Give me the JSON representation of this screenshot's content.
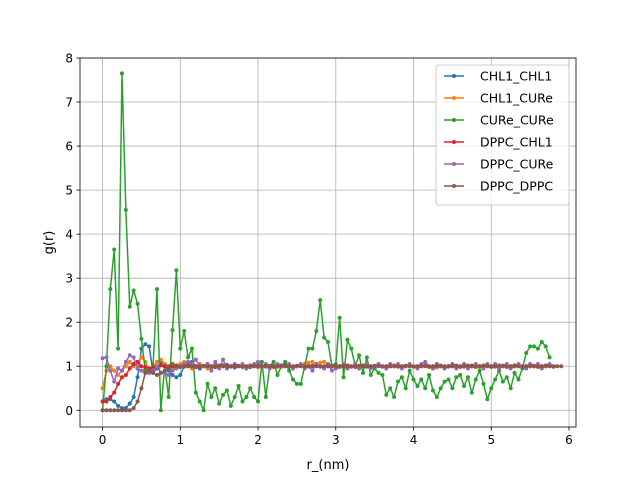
{
  "chart_data": {
    "type": "line",
    "title": "",
    "xlabel": "r_(nm)",
    "ylabel": "g(r)",
    "xlim": [
      -0.29,
      6.09
    ],
    "ylim": [
      -0.38,
      8.0
    ],
    "xticks": [
      0,
      1,
      2,
      3,
      4,
      5,
      6
    ],
    "yticks": [
      0,
      1,
      2,
      3,
      4,
      5,
      6,
      7,
      8
    ],
    "grid": true,
    "legend_position": "top-right",
    "colors": {
      "CHL1_CHL1": "#1f77b4",
      "CHL1_CURe": "#ff7f0e",
      "CURe_CURe": "#2ca02c",
      "DPPC_CHL1": "#d62728",
      "DPPC_CURe": "#9467bd",
      "DPPC_DPPC": "#8c564b"
    },
    "series": [
      {
        "name": "CHL1_CHL1",
        "x_step": 0.05,
        "values": [
          0.2,
          0.25,
          0.25,
          0.2,
          0.1,
          0.05,
          0.05,
          0.15,
          0.3,
          0.75,
          1.4,
          1.5,
          1.45,
          0.85,
          0.95,
          1.1,
          1.05,
          0.9,
          0.8,
          0.75,
          0.8,
          1.0,
          1.05,
          1.1,
          1.0,
          0.95,
          1.0,
          1.05,
          1.0,
          0.98,
          1.0,
          1.02,
          1.03,
          1.0,
          0.97,
          1.0,
          1.02,
          1.0,
          0.98,
          1.0,
          1.02,
          1.0,
          0.99,
          1.0,
          1.01,
          1.0,
          0.99,
          1.0,
          1.01,
          1.0,
          1.0,
          1.01,
          0.99,
          1.0,
          1.0,
          1.01,
          0.99,
          1.0,
          1.0,
          1.01,
          0.99,
          1.0,
          1.0,
          1.01,
          0.99,
          1.0,
          1.0,
          1.01,
          0.99,
          1.0,
          1.0,
          1.01,
          0.99,
          1.0,
          1.0,
          1.01,
          0.99,
          1.0,
          1.0,
          1.01,
          0.99,
          1.0,
          1.0,
          1.01,
          0.99,
          1.0,
          1.0,
          1.01,
          0.99,
          1.0,
          1.0,
          1.01,
          0.99,
          1.0,
          1.0,
          1.01,
          0.99,
          1.0,
          1.0,
          1.01,
          0.99,
          1.0,
          1.0,
          1.01,
          0.99,
          1.0,
          1.0,
          1.01,
          0.99,
          1.0,
          1.0,
          1.01,
          0.99,
          1.0,
          1.0,
          1.01,
          0.99
        ]
      },
      {
        "name": "CHL1_CURe",
        "x_step": 0.05,
        "values": [
          0.5,
          0.9,
          1.0,
          0.9,
          0.8,
          0.9,
          1.0,
          1.1,
          1.0,
          1.05,
          1.2,
          1.1,
          0.9,
          1.0,
          1.1,
          1.15,
          1.05,
          1.0,
          0.95,
          1.0,
          1.05,
          1.1,
          1.0,
          0.95,
          1.0,
          1.05,
          1.0,
          0.95,
          1.0,
          1.05,
          1.02,
          1.0,
          0.98,
          1.0,
          1.02,
          1.0,
          0.98,
          1.0,
          1.02,
          1.0,
          0.98,
          1.0,
          1.02,
          1.0,
          0.98,
          1.0,
          1.02,
          1.05,
          1.0,
          0.98,
          1.0,
          1.02,
          1.05,
          1.08,
          1.1,
          1.05,
          1.08,
          1.1,
          1.05,
          1.0,
          1.0,
          0.98,
          1.0,
          1.02,
          1.0,
          0.98,
          1.0,
          1.02,
          1.0,
          0.98,
          1.0,
          1.02,
          1.0,
          0.98,
          1.0,
          1.02,
          1.0,
          0.98,
          1.0,
          1.02,
          1.0,
          0.98,
          1.0,
          1.02,
          0.98,
          0.95,
          0.97,
          1.0,
          0.98,
          1.0,
          1.02,
          1.0,
          0.98,
          1.0,
          1.02,
          1.0,
          0.98,
          1.0,
          1.02,
          1.0,
          0.98,
          1.0,
          1.02,
          1.0,
          0.98,
          1.0,
          1.02,
          1.0,
          0.98,
          1.0,
          1.02,
          1.0,
          0.98,
          1.0,
          1.02,
          1.0,
          1.0
        ]
      },
      {
        "name": "CURe_CURe",
        "x_step": 0.05,
        "values": [
          0.0,
          1.0,
          2.75,
          3.65,
          1.4,
          7.65,
          4.55,
          2.35,
          2.72,
          2.42,
          1.62,
          0.92,
          0.85,
          1.0,
          2.75,
          0.0,
          1.0,
          0.3,
          1.82,
          3.18,
          1.4,
          1.8,
          1.2,
          1.4,
          0.4,
          0.2,
          0.0,
          0.6,
          0.3,
          0.5,
          0.15,
          0.35,
          0.45,
          0.1,
          0.3,
          0.55,
          0.2,
          0.3,
          0.5,
          0.3,
          0.2,
          1.1,
          0.3,
          1.0,
          1.1,
          0.8,
          1.0,
          1.1,
          0.9,
          0.7,
          0.6,
          0.6,
          1.0,
          1.4,
          1.4,
          1.8,
          2.5,
          1.65,
          1.55,
          1.0,
          1.05,
          2.1,
          0.75,
          1.6,
          1.4,
          1.0,
          1.25,
          0.85,
          1.2,
          0.8,
          0.95,
          0.85,
          0.8,
          0.35,
          0.5,
          0.3,
          0.65,
          0.75,
          0.5,
          0.9,
          0.7,
          0.55,
          0.7,
          0.5,
          0.8,
          0.45,
          0.3,
          0.5,
          0.65,
          0.7,
          0.5,
          0.75,
          0.8,
          0.55,
          0.75,
          0.4,
          0.7,
          0.9,
          0.6,
          0.25,
          0.5,
          0.7,
          0.9,
          0.65,
          0.75,
          0.5,
          0.85,
          0.7,
          0.95,
          1.3,
          1.45,
          1.45,
          1.4,
          1.55,
          1.45,
          1.2
        ]
      },
      {
        "name": "DPPC_CHL1",
        "x_step": 0.05,
        "values": [
          0.2,
          0.2,
          0.3,
          0.4,
          0.6,
          0.75,
          0.8,
          0.95,
          1.05,
          1.1,
          1.0,
          0.98,
          0.95,
          0.97,
          1.0,
          1.02,
          1.0,
          0.98,
          1.0,
          1.02,
          1.0,
          0.99,
          1.0,
          1.01,
          1.0,
          0.99,
          1.0,
          1.01,
          1.0,
          0.99,
          1.0,
          1.01,
          1.0,
          0.99,
          1.0,
          1.01,
          1.0,
          0.99,
          1.0,
          1.01,
          1.0,
          0.99,
          1.0,
          1.01,
          1.0,
          0.99,
          1.0,
          1.01,
          1.0,
          0.99,
          1.0,
          1.01,
          1.0,
          0.99,
          1.0,
          1.01,
          1.0,
          0.99,
          1.0,
          1.01,
          1.0,
          0.99,
          1.0,
          1.01,
          1.0,
          0.99,
          1.0,
          1.01,
          1.0,
          0.99,
          1.0,
          1.01,
          1.0,
          0.99,
          1.0,
          1.01,
          1.0,
          0.99,
          1.0,
          1.01,
          1.0,
          0.99,
          1.0,
          1.01,
          1.0,
          0.99,
          1.0,
          1.01,
          1.0,
          0.99,
          1.0,
          1.01,
          1.0,
          0.99,
          1.0,
          1.01,
          1.0,
          0.99,
          1.0,
          1.01,
          1.0,
          0.99,
          1.0,
          1.01,
          1.0,
          0.99,
          1.0,
          1.01,
          1.0,
          0.99,
          1.0,
          1.01,
          1.0,
          0.99,
          1.0,
          1.01,
          1.0
        ]
      },
      {
        "name": "DPPC_CURe",
        "x_step": 0.05,
        "values": [
          1.18,
          1.2,
          0.9,
          0.65,
          0.95,
          0.9,
          1.1,
          1.25,
          1.2,
          0.95,
          0.9,
          0.85,
          0.85,
          0.9,
          1.0,
          0.85,
          0.85,
          0.8,
          0.9,
          0.95,
          1.0,
          1.05,
          1.1,
          1.05,
          1.15,
          1.0,
          1.0,
          1.05,
          0.9,
          1.1,
          0.95,
          1.15,
          0.95,
          1.0,
          1.05,
          1.0,
          1.05,
          0.95,
          1.0,
          1.05,
          1.1,
          1.0,
          1.05,
          0.95,
          1.0,
          1.05,
          1.0,
          1.0,
          1.05,
          0.95,
          1.0,
          1.05,
          0.95,
          1.0,
          0.9,
          1.05,
          1.0,
          0.95,
          1.05,
          0.9,
          0.95,
          1.0,
          1.05,
          0.95,
          1.0,
          1.05,
          0.95,
          1.0,
          1.05,
          0.95,
          1.0,
          1.05,
          1.0,
          0.95,
          1.05,
          1.0,
          1.05,
          0.95,
          1.0,
          1.05,
          1.0,
          0.95,
          1.05,
          1.1,
          1.0,
          0.95,
          1.05,
          1.0,
          0.95,
          1.0,
          1.05,
          0.95,
          1.0,
          1.05,
          0.95,
          1.0,
          1.05,
          1.0,
          0.95,
          1.05,
          1.0,
          1.05,
          0.95,
          1.0,
          1.05,
          0.95,
          1.0,
          1.05,
          1.0,
          0.95,
          1.05,
          1.0,
          1.05,
          0.95,
          1.0,
          1.05,
          1.0
        ]
      },
      {
        "name": "DPPC_DPPC",
        "x_step": 0.05,
        "values": [
          0.0,
          0.0,
          0.0,
          0.0,
          0.0,
          0.0,
          0.0,
          0.0,
          0.05,
          0.2,
          0.5,
          0.85,
          0.9,
          0.85,
          0.8,
          0.85,
          0.9,
          1.0,
          1.05,
          1.0,
          0.98,
          1.0,
          1.02,
          1.0,
          0.98,
          1.0,
          1.01,
          1.0,
          0.99,
          1.0,
          1.01,
          1.0,
          0.99,
          1.0,
          1.01,
          1.0,
          0.99,
          1.0,
          1.01,
          1.0,
          0.99,
          1.0,
          1.01,
          1.0,
          0.99,
          1.0,
          1.01,
          1.0,
          0.99,
          1.0,
          1.01,
          1.0,
          0.99,
          1.0,
          1.01,
          1.0,
          0.99,
          1.0,
          1.01,
          1.0,
          0.99,
          1.0,
          1.01,
          1.0,
          0.99,
          1.0,
          1.01,
          1.0,
          0.99,
          1.0,
          1.01,
          1.0,
          0.99,
          1.0,
          1.01,
          1.0,
          0.99,
          1.0,
          1.01,
          1.0,
          0.99,
          1.0,
          1.01,
          1.0,
          0.99,
          1.0,
          1.01,
          1.0,
          0.99,
          1.0,
          1.01,
          1.0,
          0.99,
          1.0,
          1.01,
          1.0,
          0.99,
          1.0,
          1.01,
          1.0,
          0.99,
          1.0,
          1.01,
          1.0,
          0.99,
          1.0,
          1.01,
          1.0,
          0.99,
          1.0,
          1.01,
          1.0,
          0.99,
          1.0,
          1.01,
          1.0,
          0.99,
          1.0,
          1.0
        ]
      }
    ]
  }
}
